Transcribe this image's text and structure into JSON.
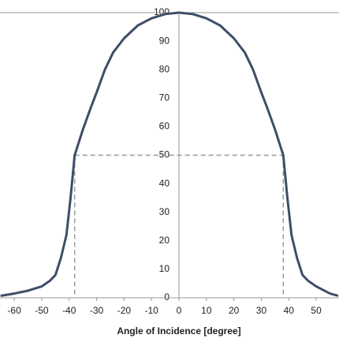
{
  "chart_data": {
    "type": "line",
    "x_label": "Angle of Incidence [degree]",
    "x": [
      -65,
      -60,
      -55,
      -50,
      -47,
      -45,
      -43,
      -41,
      -39.5,
      -38,
      -35,
      -32,
      -30,
      -27,
      -24,
      -20,
      -15,
      -10,
      -5,
      0,
      5,
      10,
      15,
      20,
      24,
      27,
      30,
      32,
      35,
      38,
      39.5,
      41,
      43,
      45,
      47,
      50,
      55,
      58
    ],
    "series": [
      {
        "color": "#3e4e68",
        "values": [
          0.7,
          1.5,
          2.5,
          4,
          6,
          8,
          14,
          22,
          35,
          50,
          59,
          67,
          72,
          80,
          86,
          91,
          95.5,
          98,
          99.5,
          100,
          99.5,
          98,
          95.5,
          91,
          86,
          80,
          72,
          67,
          59,
          50,
          35,
          22,
          14,
          8,
          6,
          4,
          1.5,
          0.7
        ]
      }
    ],
    "reference": {
      "x": [
        -38,
        38
      ],
      "y": 50,
      "color": "#999999"
    },
    "xlim": [
      -65.2,
      58.3
    ],
    "ylim": [
      0,
      100
    ],
    "xticks": [
      -60,
      -50,
      -40,
      -30,
      -20,
      -10,
      0,
      10,
      20,
      30,
      40,
      50
    ],
    "yticks": [
      0,
      10,
      20,
      30,
      40,
      50,
      60,
      70,
      80,
      90,
      100
    ]
  }
}
